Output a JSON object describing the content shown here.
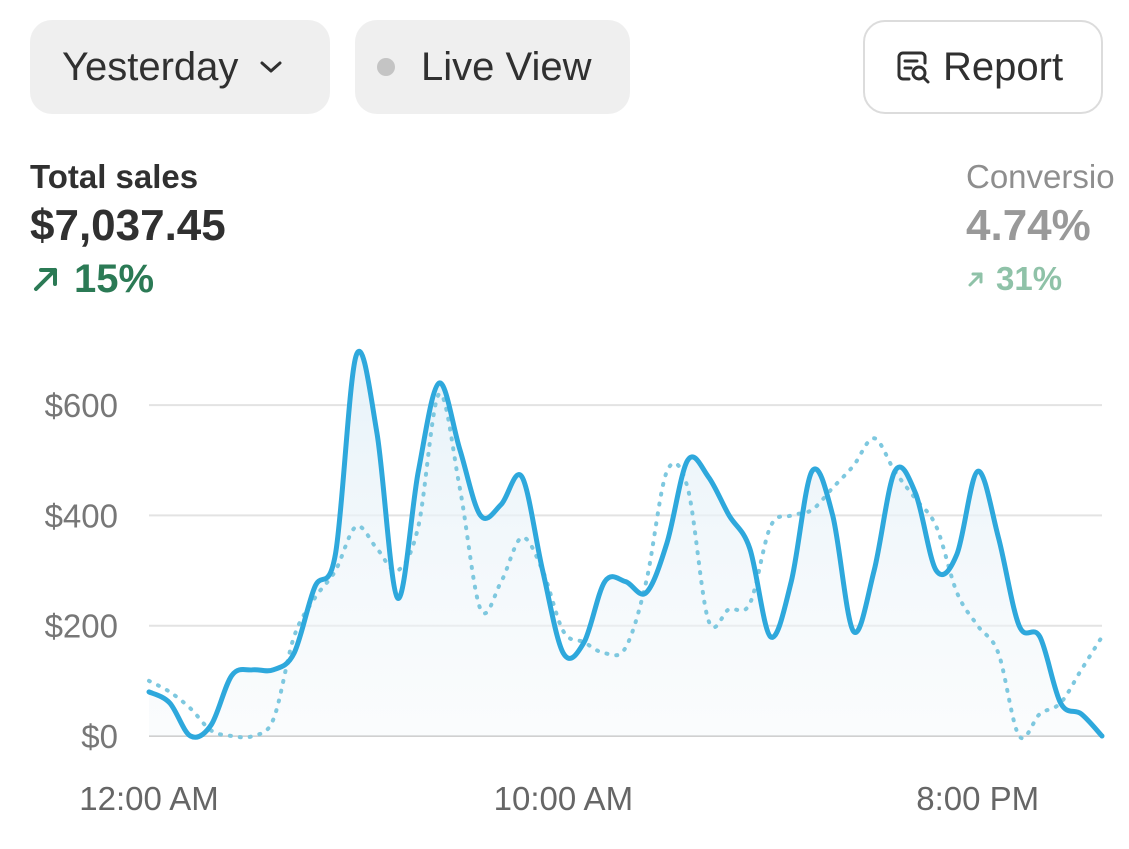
{
  "header": {
    "date_range": {
      "label": "Yesterday",
      "icon": "chevron-down-icon"
    },
    "live_view": {
      "label": "Live View",
      "icon": "status-dot-icon"
    },
    "report": {
      "label": "Report",
      "icon": "report-search-icon"
    }
  },
  "metrics": [
    {
      "label": "Total sales",
      "value": "$7,037.45",
      "delta": "15%",
      "direction": "up",
      "color": "#2b7a55"
    },
    {
      "label": "Conversio",
      "value": "4.74%",
      "delta": "31%",
      "direction": "up",
      "color": "#8fc2a8"
    }
  ],
  "chart_data": {
    "type": "line",
    "y_tick_labels": [
      "$0",
      "$200",
      "$400",
      "$600"
    ],
    "y_ticks": [
      0,
      200,
      400,
      600
    ],
    "ylim": [
      0,
      700
    ],
    "x_tick_labels": [
      "12:00 AM",
      "10:00 AM",
      "8:00 PM"
    ],
    "x_ticks": [
      0,
      10,
      20
    ],
    "xlim": [
      0,
      23
    ],
    "grid": true,
    "series": [
      {
        "style": "solid",
        "color": "#2ea8dc",
        "x": [
          0,
          0.5,
          1,
          1.5,
          2,
          2.5,
          3,
          3.5,
          4,
          4.5,
          5,
          5.5,
          6,
          6.5,
          7,
          7.5,
          8,
          8.5,
          9,
          9.5,
          10,
          10.5,
          11,
          11.5,
          12,
          12.5,
          13,
          13.5,
          14,
          14.5,
          15,
          15.5,
          16,
          16.5,
          17,
          17.5,
          18,
          18.5,
          19,
          19.5,
          20,
          20.5,
          21,
          21.5,
          22,
          22.5,
          23
        ],
        "y": [
          80,
          60,
          0,
          20,
          110,
          120,
          120,
          150,
          270,
          330,
          690,
          550,
          250,
          480,
          640,
          520,
          400,
          420,
          470,
          300,
          150,
          170,
          280,
          280,
          260,
          350,
          500,
          470,
          400,
          340,
          180,
          280,
          480,
          400,
          190,
          300,
          480,
          440,
          300,
          330,
          480,
          360,
          200,
          180,
          60,
          40,
          0
        ]
      },
      {
        "style": "dotted",
        "color": "#7ec8df",
        "x": [
          0,
          0.5,
          1,
          1.5,
          2,
          2.5,
          3,
          3.5,
          4,
          4.5,
          5,
          5.5,
          6,
          6.5,
          7,
          7.5,
          8,
          8.5,
          9,
          9.5,
          10,
          10.5,
          11,
          11.5,
          12,
          12.5,
          13,
          13.5,
          14,
          14.5,
          15,
          15.5,
          16,
          16.5,
          17,
          17.5,
          18,
          18.5,
          19,
          19.5,
          20,
          20.5,
          21,
          21.5,
          22,
          22.5,
          23
        ],
        "y": [
          100,
          80,
          50,
          10,
          0,
          0,
          30,
          180,
          250,
          300,
          380,
          340,
          300,
          380,
          620,
          450,
          230,
          280,
          360,
          300,
          190,
          170,
          150,
          160,
          280,
          480,
          450,
          210,
          230,
          240,
          380,
          400,
          410,
          450,
          490,
          540,
          480,
          430,
          380,
          260,
          200,
          150,
          0,
          40,
          60,
          120,
          180
        ]
      }
    ]
  }
}
